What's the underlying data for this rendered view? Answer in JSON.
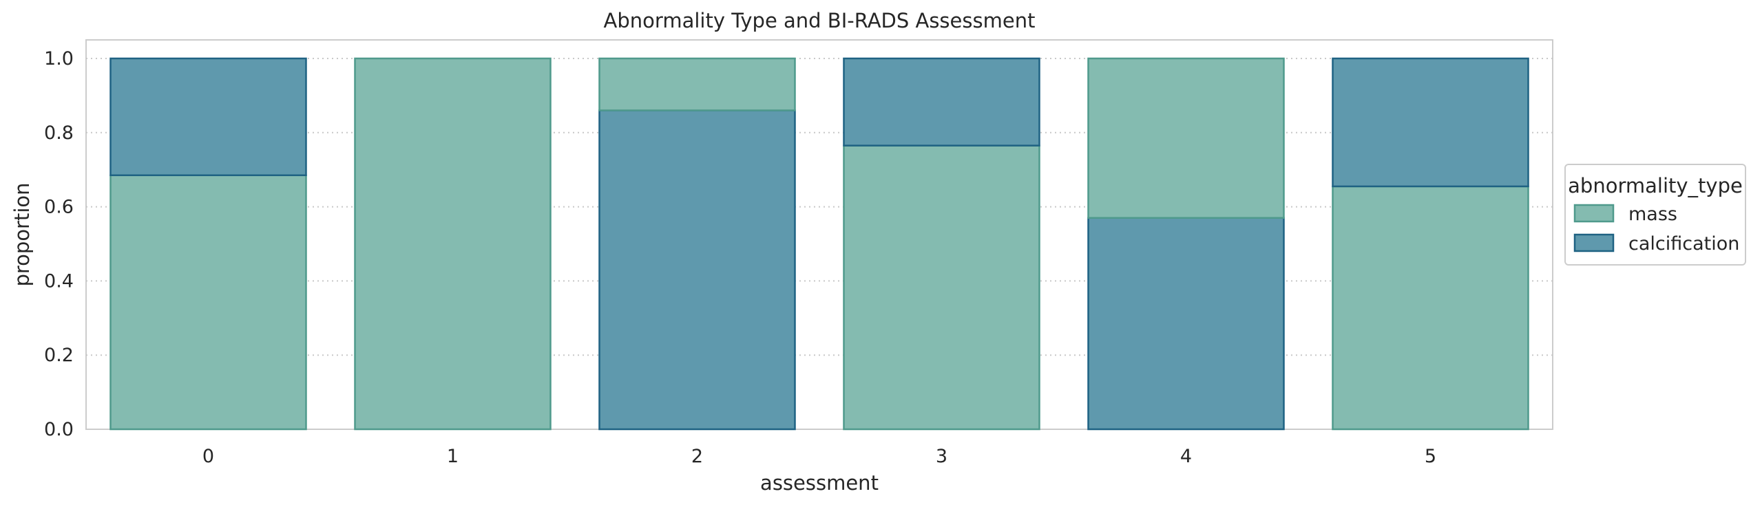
{
  "chart_data": {
    "type": "bar",
    "stacked": true,
    "title": "Abnormality Type and BI-RADS Assessment",
    "xlabel": "assessment",
    "ylabel": "proportion",
    "categories": [
      "0",
      "1",
      "2",
      "3",
      "4",
      "5"
    ],
    "ylim": [
      0,
      1.05
    ],
    "yticks": [
      "0.0",
      "0.2",
      "0.4",
      "0.6",
      "0.8",
      "1.0"
    ],
    "grid": "horizontal dotted",
    "legend": {
      "title": "abnormality_type",
      "placement": "right, outside"
    },
    "series": [
      {
        "name": "mass",
        "color": "#84bbb0",
        "edge": "#4f9a8c",
        "values": [
          0.685,
          1.0,
          0.14,
          0.765,
          0.43,
          0.655
        ]
      },
      {
        "name": "calcification",
        "color": "#5f99ad",
        "edge": "#1f6283",
        "values": [
          0.315,
          0.0,
          0.86,
          0.235,
          0.57,
          0.345
        ]
      }
    ],
    "stack_order": {
      "0": [
        "mass",
        "calcification"
      ],
      "1": [
        "mass",
        "calcification"
      ],
      "2": [
        "calcification",
        "mass"
      ],
      "3": [
        "mass",
        "calcification"
      ],
      "4": [
        "calcification",
        "mass"
      ],
      "5": [
        "mass",
        "calcification"
      ]
    }
  }
}
